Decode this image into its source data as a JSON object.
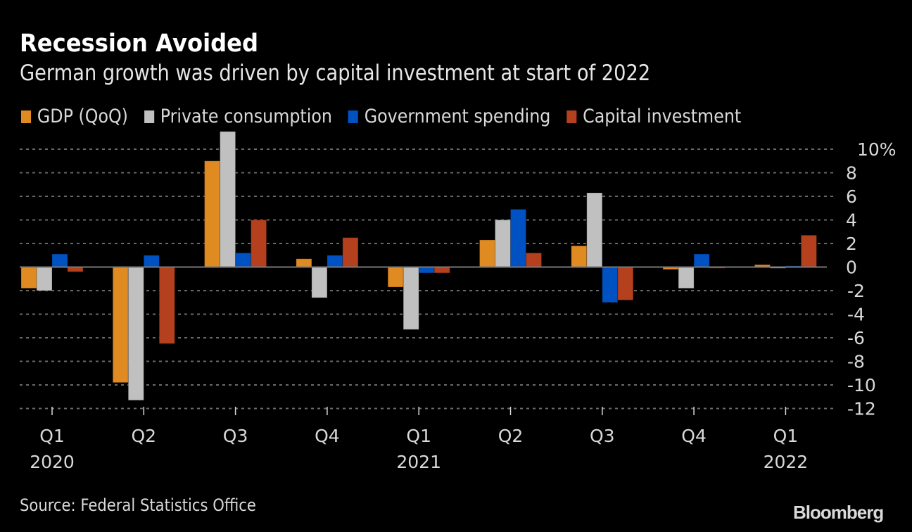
{
  "header": {
    "title": "Recession Avoided",
    "subtitle": "German growth was driven by capital investment at start of 2022"
  },
  "footer": {
    "source": "Source: Federal Statistics Office",
    "brand": "Bloomberg"
  },
  "chart_data": {
    "type": "bar",
    "title": "Recession Avoided",
    "subtitle": "German growth was driven by capital investment at start of 2022",
    "xlabel": "",
    "ylabel": "",
    "ylim": [
      -12,
      11.5
    ],
    "yticks": [
      10,
      8,
      6,
      4,
      2,
      0,
      -2,
      -4,
      -6,
      -8,
      -10,
      -12
    ],
    "ytick_labels": [
      "10%",
      "8",
      "6",
      "4",
      "2",
      "0",
      "-2",
      "-4",
      "-6",
      "-8",
      "-10",
      "-12"
    ],
    "y_axis_position": "right",
    "grid": true,
    "legend_position": "top-left",
    "categories": [
      "Q1 2020",
      "Q2 2020",
      "Q3 2020",
      "Q4 2020",
      "Q1 2021",
      "Q2 2021",
      "Q3 2021",
      "Q4 2021",
      "Q1 2022"
    ],
    "category_labels": [
      {
        "quarter": "Q1",
        "year": "2020"
      },
      {
        "quarter": "Q2",
        "year": ""
      },
      {
        "quarter": "Q3",
        "year": ""
      },
      {
        "quarter": "Q4",
        "year": ""
      },
      {
        "quarter": "Q1",
        "year": "2021"
      },
      {
        "quarter": "Q2",
        "year": ""
      },
      {
        "quarter": "Q3",
        "year": ""
      },
      {
        "quarter": "Q4",
        "year": ""
      },
      {
        "quarter": "Q1",
        "year": "2022"
      }
    ],
    "series": [
      {
        "name": "GDP (QoQ)",
        "color": "#e08a22",
        "values": [
          -1.8,
          -9.8,
          9.0,
          0.7,
          -1.7,
          2.3,
          1.8,
          -0.2,
          0.2
        ]
      },
      {
        "name": "Private consumption",
        "color": "#c0c0c0",
        "values": [
          -2.0,
          -11.3,
          11.5,
          -2.6,
          -5.3,
          4.0,
          6.3,
          -1.8,
          -0.1
        ]
      },
      {
        "name": "Government spending",
        "color": "#0052c2",
        "values": [
          1.1,
          1.0,
          1.2,
          1.0,
          -0.5,
          4.9,
          -3.0,
          1.1,
          0.1
        ]
      },
      {
        "name": "Capital investment",
        "color": "#b4401e",
        "values": [
          -0.4,
          -6.5,
          4.0,
          2.5,
          -0.5,
          1.2,
          -2.8,
          -0.1,
          2.7
        ]
      }
    ]
  }
}
